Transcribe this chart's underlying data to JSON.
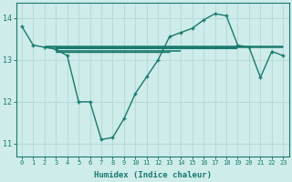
{
  "x": [
    0,
    1,
    2,
    3,
    4,
    5,
    6,
    7,
    8,
    9,
    10,
    11,
    12,
    13,
    14,
    15,
    16,
    17,
    18,
    19,
    20,
    21,
    22,
    23
  ],
  "y_line": [
    13.8,
    13.35,
    13.3,
    13.25,
    13.1,
    12.0,
    12.0,
    11.1,
    11.15,
    11.6,
    12.2,
    12.6,
    13.0,
    13.55,
    13.65,
    13.75,
    13.95,
    14.1,
    14.05,
    13.35,
    13.3,
    12.58,
    13.2,
    13.1
  ],
  "h_lines": [
    {
      "x0": 2,
      "x1": 23,
      "y": 13.32,
      "lw": 1.8
    },
    {
      "x0": 3,
      "x1": 19,
      "y": 13.28,
      "lw": 1.5
    },
    {
      "x0": 3,
      "x1": 14,
      "y": 13.22,
      "lw": 1.2
    },
    {
      "x0": 3,
      "x1": 13,
      "y": 13.18,
      "lw": 1.0
    }
  ],
  "color_main": "#1a7a6e",
  "color_bg": "#ceecea",
  "color_grid": "#b8dbd9",
  "xlabel": "Humidex (Indice chaleur)",
  "ylim": [
    10.7,
    14.35
  ],
  "xlim": [
    -0.5,
    23.5
  ],
  "yticks": [
    11,
    12,
    13,
    14
  ],
  "xticks": [
    0,
    1,
    2,
    3,
    4,
    5,
    6,
    7,
    8,
    9,
    10,
    11,
    12,
    13,
    14,
    15,
    16,
    17,
    18,
    19,
    20,
    21,
    22,
    23
  ]
}
